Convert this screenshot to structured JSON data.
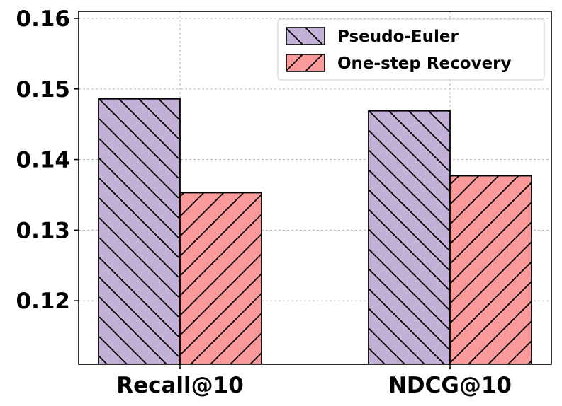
{
  "chart_data": {
    "type": "bar",
    "title": "",
    "xlabel": "",
    "ylabel": "",
    "categories": [
      "Recall@10",
      "NDCG@10"
    ],
    "series": [
      {
        "name": "Pseudo-Euler",
        "values": [
          0.1486,
          0.1469
        ],
        "color": "#c3b0d6",
        "hatch": "backslash"
      },
      {
        "name": "One-step Recovery",
        "values": [
          0.1353,
          0.1377
        ],
        "color": "#fa9a9a",
        "hatch": "slash"
      }
    ],
    "ylim": [
      0.111,
      0.161
    ],
    "yticks": [
      0.12,
      0.13,
      0.14,
      0.15,
      0.16
    ],
    "ytick_labels": [
      "0.12",
      "0.13",
      "0.14",
      "0.15",
      "0.16"
    ],
    "grid": true,
    "legend_position": "top-right"
  }
}
